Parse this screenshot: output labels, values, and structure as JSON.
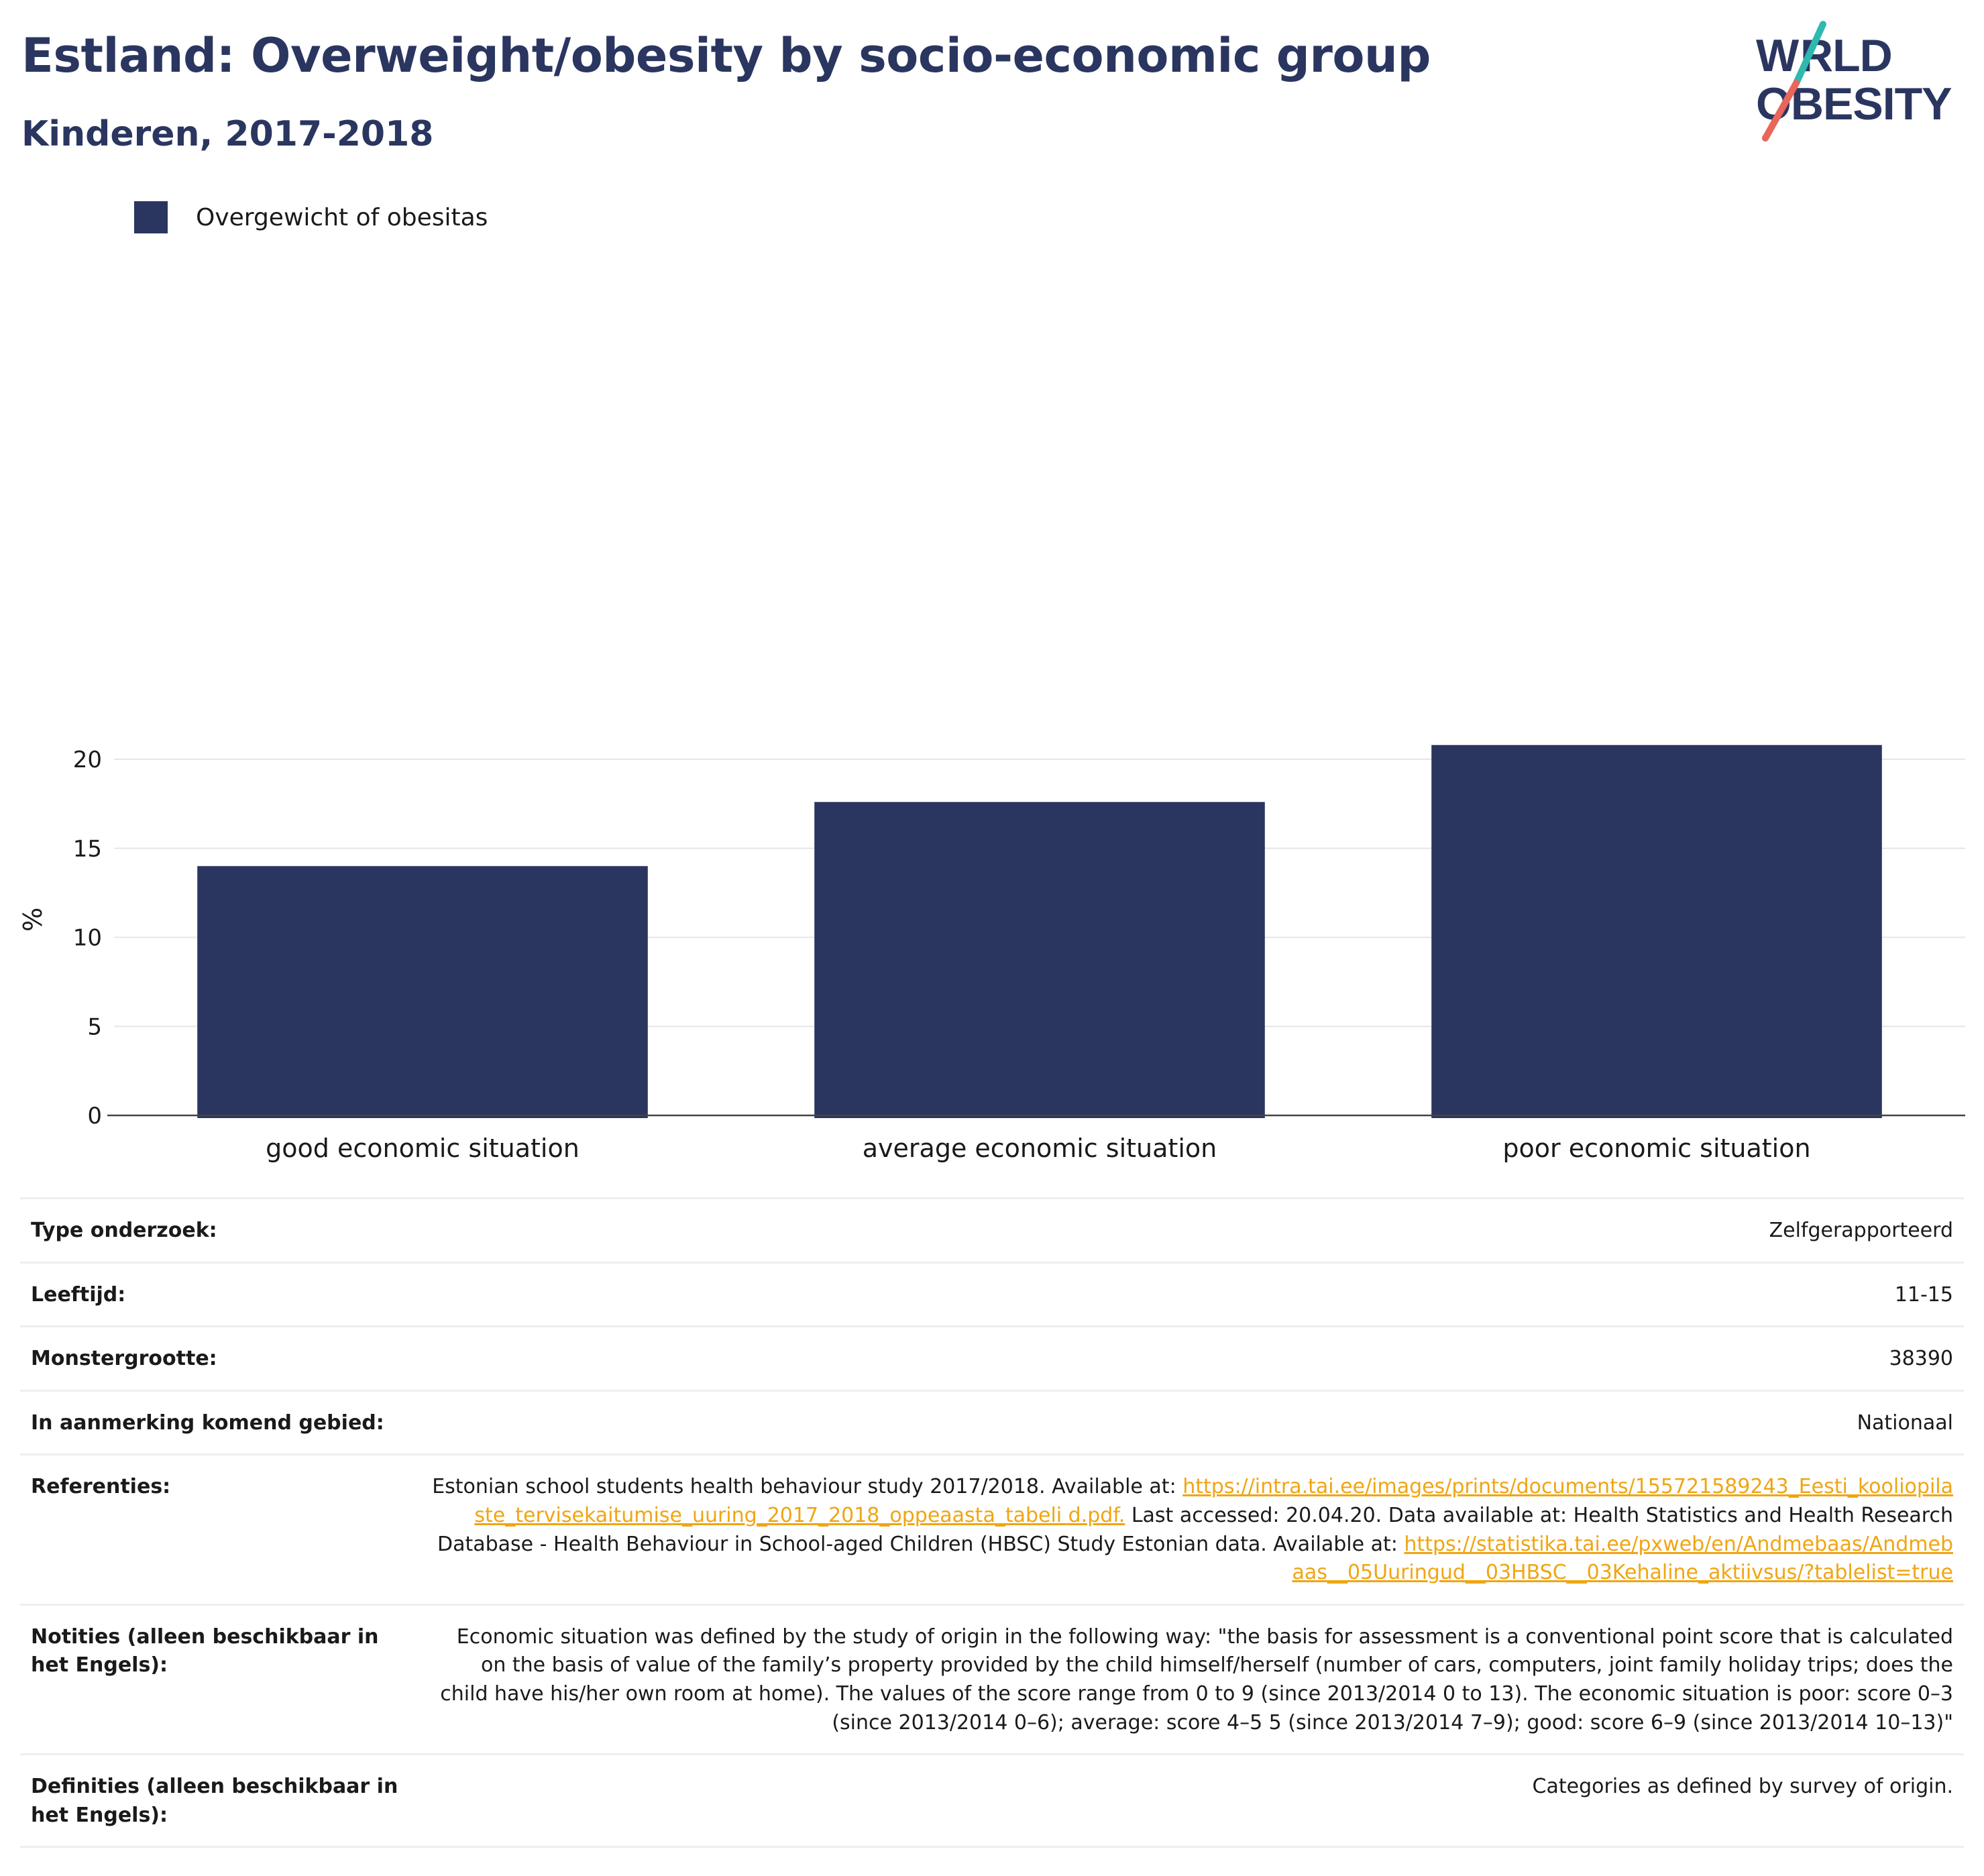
{
  "header": {
    "title": "Estland: Overweight/obesity by socio-economic group",
    "subtitle": "Kinderen, 2017-2018"
  },
  "logo": {
    "line1": "WORLD",
    "line2": "OBESITY",
    "colors": {
      "text": "#2a3660",
      "slash_top": "#2fb8b0",
      "slash_bottom": "#e8665a"
    }
  },
  "legend": {
    "label": "Overgewicht of obesitas",
    "color": "#2a3660"
  },
  "chart_data": {
    "type": "bar",
    "categories": [
      "good economic situation",
      "average economic situation",
      "poor economic situation"
    ],
    "series": [
      {
        "name": "Overgewicht of obesitas",
        "values": [
          14.0,
          17.6,
          20.8
        ],
        "color": "#2a3660"
      }
    ],
    "ylabel": "%",
    "ylim": [
      0,
      22
    ],
    "yticks": [
      0,
      5,
      10,
      15,
      20
    ],
    "grid": true,
    "legend_position": "top-left"
  },
  "info": {
    "type_label": "Type onderzoek:",
    "type_value": "Zelfgerapporteerd",
    "age_label": "Leeftijd:",
    "age_value": "11-15",
    "sample_label": "Monstergrootte:",
    "sample_value": "38390",
    "area_label": "In aanmerking komend gebied:",
    "area_value": "Nationaal",
    "refs_label": "Referenties:",
    "refs_text1": "Estonian school students health behaviour study 2017/2018. Available at:",
    "refs_link1": "https://intra.tai.ee/images/prints/documents/155721589243_Eesti_kooliopilaste_tervisekaitumise_uuring_2017_2018_oppeaasta_tabeli d.pdf.",
    "refs_text2": "Last accessed: 20.04.20. Data available at: Health Statistics and Health Research Database - Health Behaviour in School-aged Children (HBSC) Study Estonian data. Available at:",
    "refs_link2": "https://statistika.tai.ee/pxweb/en/Andmebaas/Andmebaas__05Uuringud__03HBSC__03Kehaline_aktiivsus/?tablelist=true",
    "notes_label": "Notities (alleen beschikbaar in het Engels):",
    "notes_value": "Economic situation was defined by the study of origin in the following way: \"the basis for assessment is a conventional point score that is calculated on the basis of value of the family’s property provided by the child himself/herself (number of cars, computers, joint family holiday trips; does the child have his/her own room at home). The values of the score range from 0 to 9 (since 2013/2014 0 to 13). The economic situation is poor: score 0–3 (since 2013/2014 0–6); average: score 4–5 5 (since 2013/2014 7–9); good: score 6–9 (since 2013/2014 10–13)\"",
    "defs_label": "Definities (alleen beschikbaar in het Engels):",
    "defs_value": "Categories as defined by survey of origin."
  }
}
